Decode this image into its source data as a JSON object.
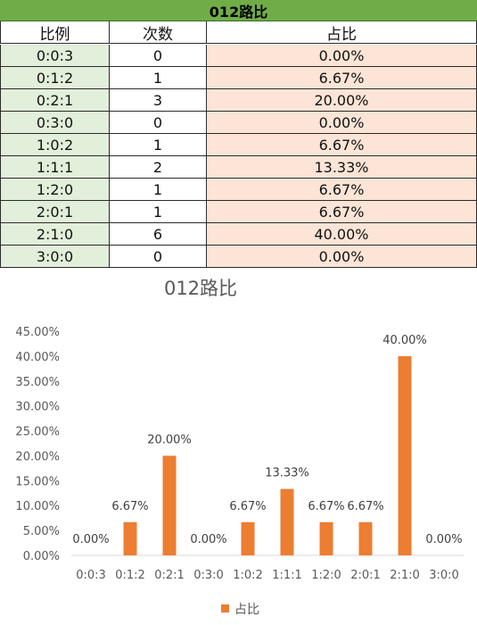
{
  "table": {
    "title": "012路比",
    "headers": [
      "比例",
      "次数",
      "占比"
    ],
    "rows": [
      {
        "ratio": "0:0:3",
        "count": "0",
        "pct": "0.00%"
      },
      {
        "ratio": "0:1:2",
        "count": "1",
        "pct": "6.67%"
      },
      {
        "ratio": "0:2:1",
        "count": "3",
        "pct": "20.00%"
      },
      {
        "ratio": "0:3:0",
        "count": "0",
        "pct": "0.00%"
      },
      {
        "ratio": "1:0:2",
        "count": "1",
        "pct": "6.67%"
      },
      {
        "ratio": "1:1:1",
        "count": "2",
        "pct": "13.33%"
      },
      {
        "ratio": "1:2:0",
        "count": "1",
        "pct": "6.67%"
      },
      {
        "ratio": "2:0:1",
        "count": "1",
        "pct": "6.67%"
      },
      {
        "ratio": "2:1:0",
        "count": "6",
        "pct": "40.00%"
      },
      {
        "ratio": "3:0:0",
        "count": "0",
        "pct": "0.00%"
      }
    ],
    "colors": {
      "header_bg": "#70ad47",
      "ratio_bg": "#e2efda",
      "pct_bg": "#fce4d6"
    }
  },
  "chart_data": {
    "type": "bar",
    "title": "012路比",
    "categories": [
      "0:0:3",
      "0:1:2",
      "0:2:1",
      "0:3:0",
      "1:0:2",
      "1:1:1",
      "1:2:0",
      "2:0:1",
      "2:1:0",
      "3:0:0"
    ],
    "series": [
      {
        "name": "占比",
        "values": [
          0.0,
          6.67,
          20.0,
          0.0,
          6.67,
          13.33,
          6.67,
          6.67,
          40.0,
          0.0
        ],
        "labels": [
          "0.00%",
          "6.67%",
          "20.00%",
          "0.00%",
          "6.67%",
          "13.33%",
          "6.67%",
          "6.67%",
          "40.00%",
          "0.00%"
        ],
        "color": "#ed7d31"
      }
    ],
    "y_ticks": [
      "0.00%",
      "5.00%",
      "10.00%",
      "15.00%",
      "20.00%",
      "25.00%",
      "30.00%",
      "35.00%",
      "40.00%",
      "45.00%"
    ],
    "ylim": [
      0,
      45
    ],
    "xlabel": "",
    "ylabel": "",
    "legend": "bottom",
    "grid": false
  }
}
